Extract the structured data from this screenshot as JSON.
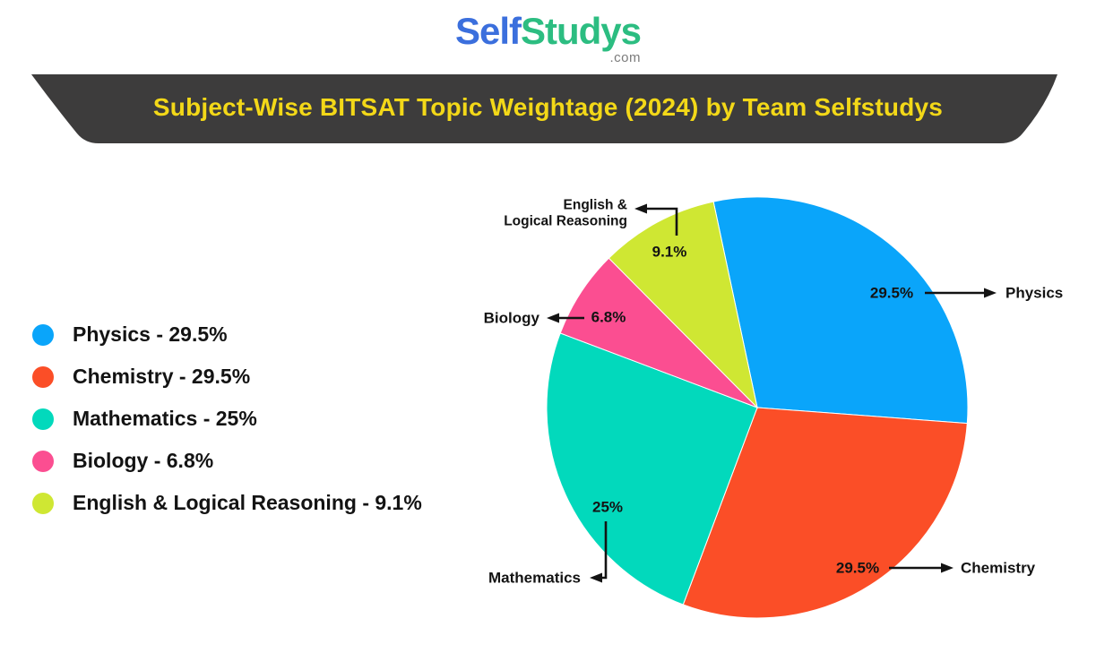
{
  "header": {
    "logo": {
      "part1": "Self",
      "part2": "Studys",
      "suffix": ".com",
      "part1_color": "#3b6fdd",
      "part2_color": "#2cbd81",
      "suffix_color": "#7b7b7b"
    },
    "banner": {
      "title": "Subject-Wise BITSAT Topic Weightage (2024) by Team Selfstudys",
      "background": "#3d3c3c",
      "title_color": "#f3d818"
    }
  },
  "legend": {
    "items": [
      {
        "text": "Physics - 29.5%",
        "color": "#0aa5fa"
      },
      {
        "text": "Chemistry - 29.5%",
        "color": "#fb4e27"
      },
      {
        "text": "Mathematics - 25%",
        "color": "#02d9bc"
      },
      {
        "text": "Biology - 6.8%",
        "color": "#fb4e91"
      },
      {
        "text": "English & Logical Reasoning - 9.1%",
        "color": "#cfe733"
      }
    ]
  },
  "chart_data": {
    "type": "pie",
    "title": "Subject-Wise BITSAT Topic Weightage (2024) by Team Selfstudys",
    "direction": "clockwise",
    "start_angle_deg": -12,
    "slices": [
      {
        "label": "Physics",
        "value": 29.5,
        "percent_label": "29.5%",
        "color": "#0aa5fa"
      },
      {
        "label": "Chemistry",
        "value": 29.5,
        "percent_label": "29.5%",
        "color": "#fb4e27"
      },
      {
        "label": "Mathematics",
        "value": 25,
        "percent_label": "25%",
        "color": "#02d9bc"
      },
      {
        "label": "Biology",
        "value": 6.8,
        "percent_label": "6.8%",
        "color": "#fb4e91"
      },
      {
        "label": "English & Logical Reasoning",
        "value": 9.1,
        "percent_label": "9.1%",
        "color": "#cfe733",
        "label_lines": [
          "English &",
          "Logical Reasoning"
        ]
      }
    ]
  }
}
